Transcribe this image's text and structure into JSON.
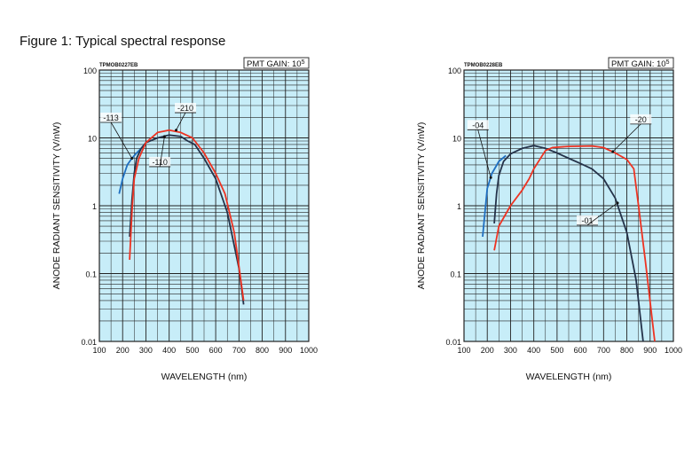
{
  "figure_title": "Figure 1: Typical spectral response",
  "chart_data": [
    {
      "type": "line",
      "code": "TPMOB0227EB",
      "gain_label": "PMT GAIN: 10",
      "gain_exp": "5",
      "xlabel": "WAVELENGTH (nm)",
      "ylabel": "ANODE RADIANT SENSITIVITY (V/nW)",
      "xlim": [
        100,
        1000
      ],
      "ylim": [
        0.01,
        100
      ],
      "yscale": "log",
      "xticks": [
        "100",
        "200",
        "300",
        "400",
        "500",
        "600",
        "700",
        "800",
        "900",
        "1000"
      ],
      "yticks": [
        "0.01",
        "0.1",
        "1",
        "10",
        "100"
      ],
      "grid": true,
      "series": [
        {
          "name": "-113",
          "color": "#1f6fc0",
          "x": [
            185,
            200,
            220,
            240,
            260,
            280,
            300
          ],
          "y": [
            1.5,
            2.5,
            4,
            5,
            6,
            7,
            8.5
          ]
        },
        {
          "name": "-110",
          "color": "#25334a",
          "x": [
            230,
            240,
            250,
            260,
            280,
            300,
            350,
            400,
            450,
            480,
            510,
            550,
            600,
            650,
            700,
            720
          ],
          "y": [
            0.35,
            1.2,
            3,
            5,
            7,
            8.5,
            10,
            11,
            10.5,
            9,
            8,
            5,
            2.5,
            0.8,
            0.12,
            0.035
          ]
        },
        {
          "name": "-210",
          "color": "#ee3322",
          "x": [
            230,
            240,
            250,
            270,
            300,
            350,
            400,
            450,
            500,
            550,
            600,
            640,
            680,
            720
          ],
          "y": [
            0.16,
            0.8,
            2.5,
            5,
            8.5,
            12,
            13,
            12,
            10,
            6,
            3,
            1.5,
            0.4,
            0.04
          ]
        }
      ],
      "annotations": [
        {
          "text": "-113",
          "label_at": [
            150,
            18
          ],
          "arrow_to": [
            240,
            5
          ]
        },
        {
          "text": "-110",
          "label_at": [
            360,
            4
          ],
          "arrow_to": [
            380,
            10.5
          ]
        },
        {
          "text": "-210",
          "label_at": [
            470,
            25
          ],
          "arrow_to": [
            430,
            13
          ]
        }
      ]
    },
    {
      "type": "line",
      "code": "TPMOB0228EB",
      "gain_label": "PMT GAIN: 10",
      "gain_exp": "5",
      "xlabel": "WAVELENGTH (nm)",
      "ylabel": "ANODE RADIANT SENSITIVITY (V/nW)",
      "xlim": [
        100,
        1000
      ],
      "ylim": [
        0.01,
        100
      ],
      "yscale": "log",
      "xticks": [
        "100",
        "200",
        "300",
        "400",
        "500",
        "600",
        "700",
        "800",
        "900",
        "1000"
      ],
      "yticks": [
        "0.01",
        "0.1",
        "1",
        "10",
        "100"
      ],
      "grid": true,
      "series": [
        {
          "name": "-04",
          "color": "#1f6fc0",
          "x": [
            180,
            190,
            200,
            220,
            250,
            280
          ],
          "y": [
            0.35,
            0.8,
            1.8,
            3,
            4.5,
            5.5
          ]
        },
        {
          "name": "-01",
          "color": "#25334a",
          "x": [
            230,
            240,
            250,
            270,
            300,
            350,
            400,
            450,
            500,
            550,
            600,
            650,
            700,
            750,
            800,
            840,
            870
          ],
          "y": [
            0.55,
            1.5,
            2.8,
            4.5,
            5.8,
            7,
            7.7,
            7,
            6,
            5,
            4.2,
            3.5,
            2.5,
            1.3,
            0.4,
            0.08,
            0.01
          ]
        },
        {
          "name": "-20",
          "color": "#ee3322",
          "x": [
            230,
            250,
            300,
            350,
            380,
            400,
            450,
            480,
            550,
            650,
            700,
            750,
            800,
            830,
            850,
            880,
            920
          ],
          "y": [
            0.22,
            0.5,
            1,
            1.7,
            2.5,
            3.5,
            6.5,
            7.2,
            7.5,
            7.6,
            7.2,
            6,
            4.8,
            3.5,
            1,
            0.15,
            0.01
          ]
        }
      ],
      "annotations": [
        {
          "text": "-04",
          "label_at": [
            160,
            14
          ],
          "arrow_to": [
            215,
            2.6
          ]
        },
        {
          "text": "-01",
          "label_at": [
            630,
            0.55
          ],
          "arrow_to": [
            760,
            1.1
          ]
        },
        {
          "text": "-20",
          "label_at": [
            860,
            17
          ],
          "arrow_to": [
            740,
            6.3
          ]
        }
      ]
    }
  ]
}
